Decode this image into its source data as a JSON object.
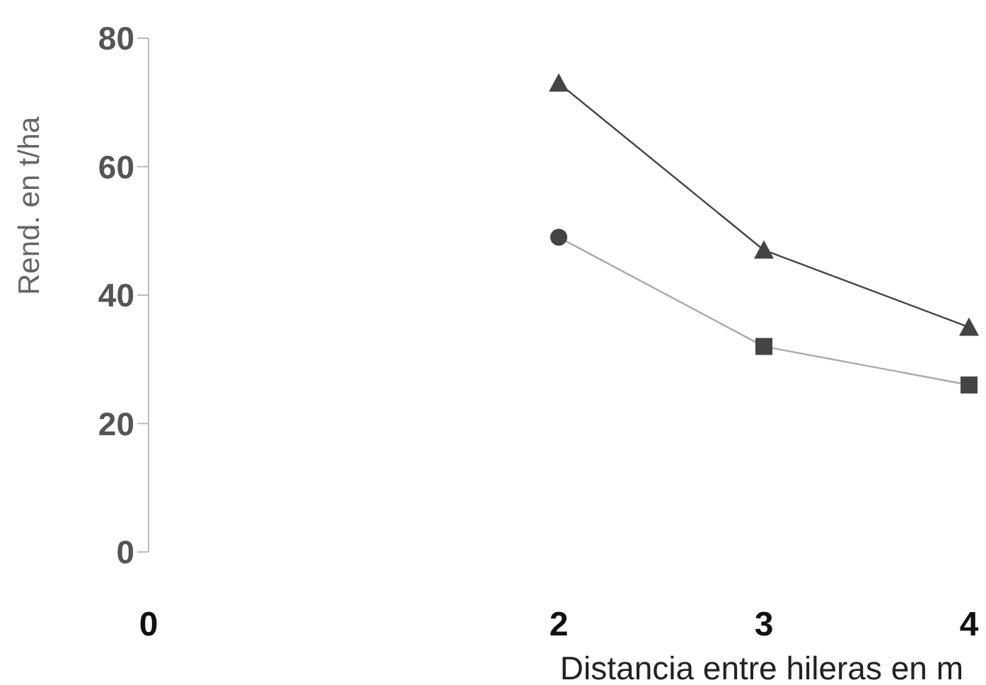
{
  "chart_data": {
    "type": "line",
    "xlabel": "Distancia entre hileras en m",
    "ylabel": "Rend. en t/ha",
    "xlim": [
      0,
      4
    ],
    "xticks": [
      0,
      2,
      3,
      4
    ],
    "ylim": [
      0,
      80
    ],
    "yticks": [
      0,
      20,
      40,
      60,
      80
    ],
    "grid": false,
    "line_style": "solid",
    "series": [
      {
        "marker": "triangle",
        "color": "#444444",
        "x": [
          2,
          3,
          4
        ],
        "values": [
          73,
          47,
          35
        ]
      },
      {
        "marker": "none",
        "color": "#aaaaaa",
        "x": [
          2,
          3,
          4
        ],
        "values": [
          49,
          32,
          26
        ]
      },
      {
        "type": "scatter",
        "marker": "circle",
        "color": "#444444",
        "x": [
          2
        ],
        "values": [
          49
        ]
      },
      {
        "type": "scatter",
        "marker": "square",
        "color": "#444444",
        "x": [
          3,
          4
        ],
        "values": [
          32,
          26
        ]
      }
    ]
  }
}
